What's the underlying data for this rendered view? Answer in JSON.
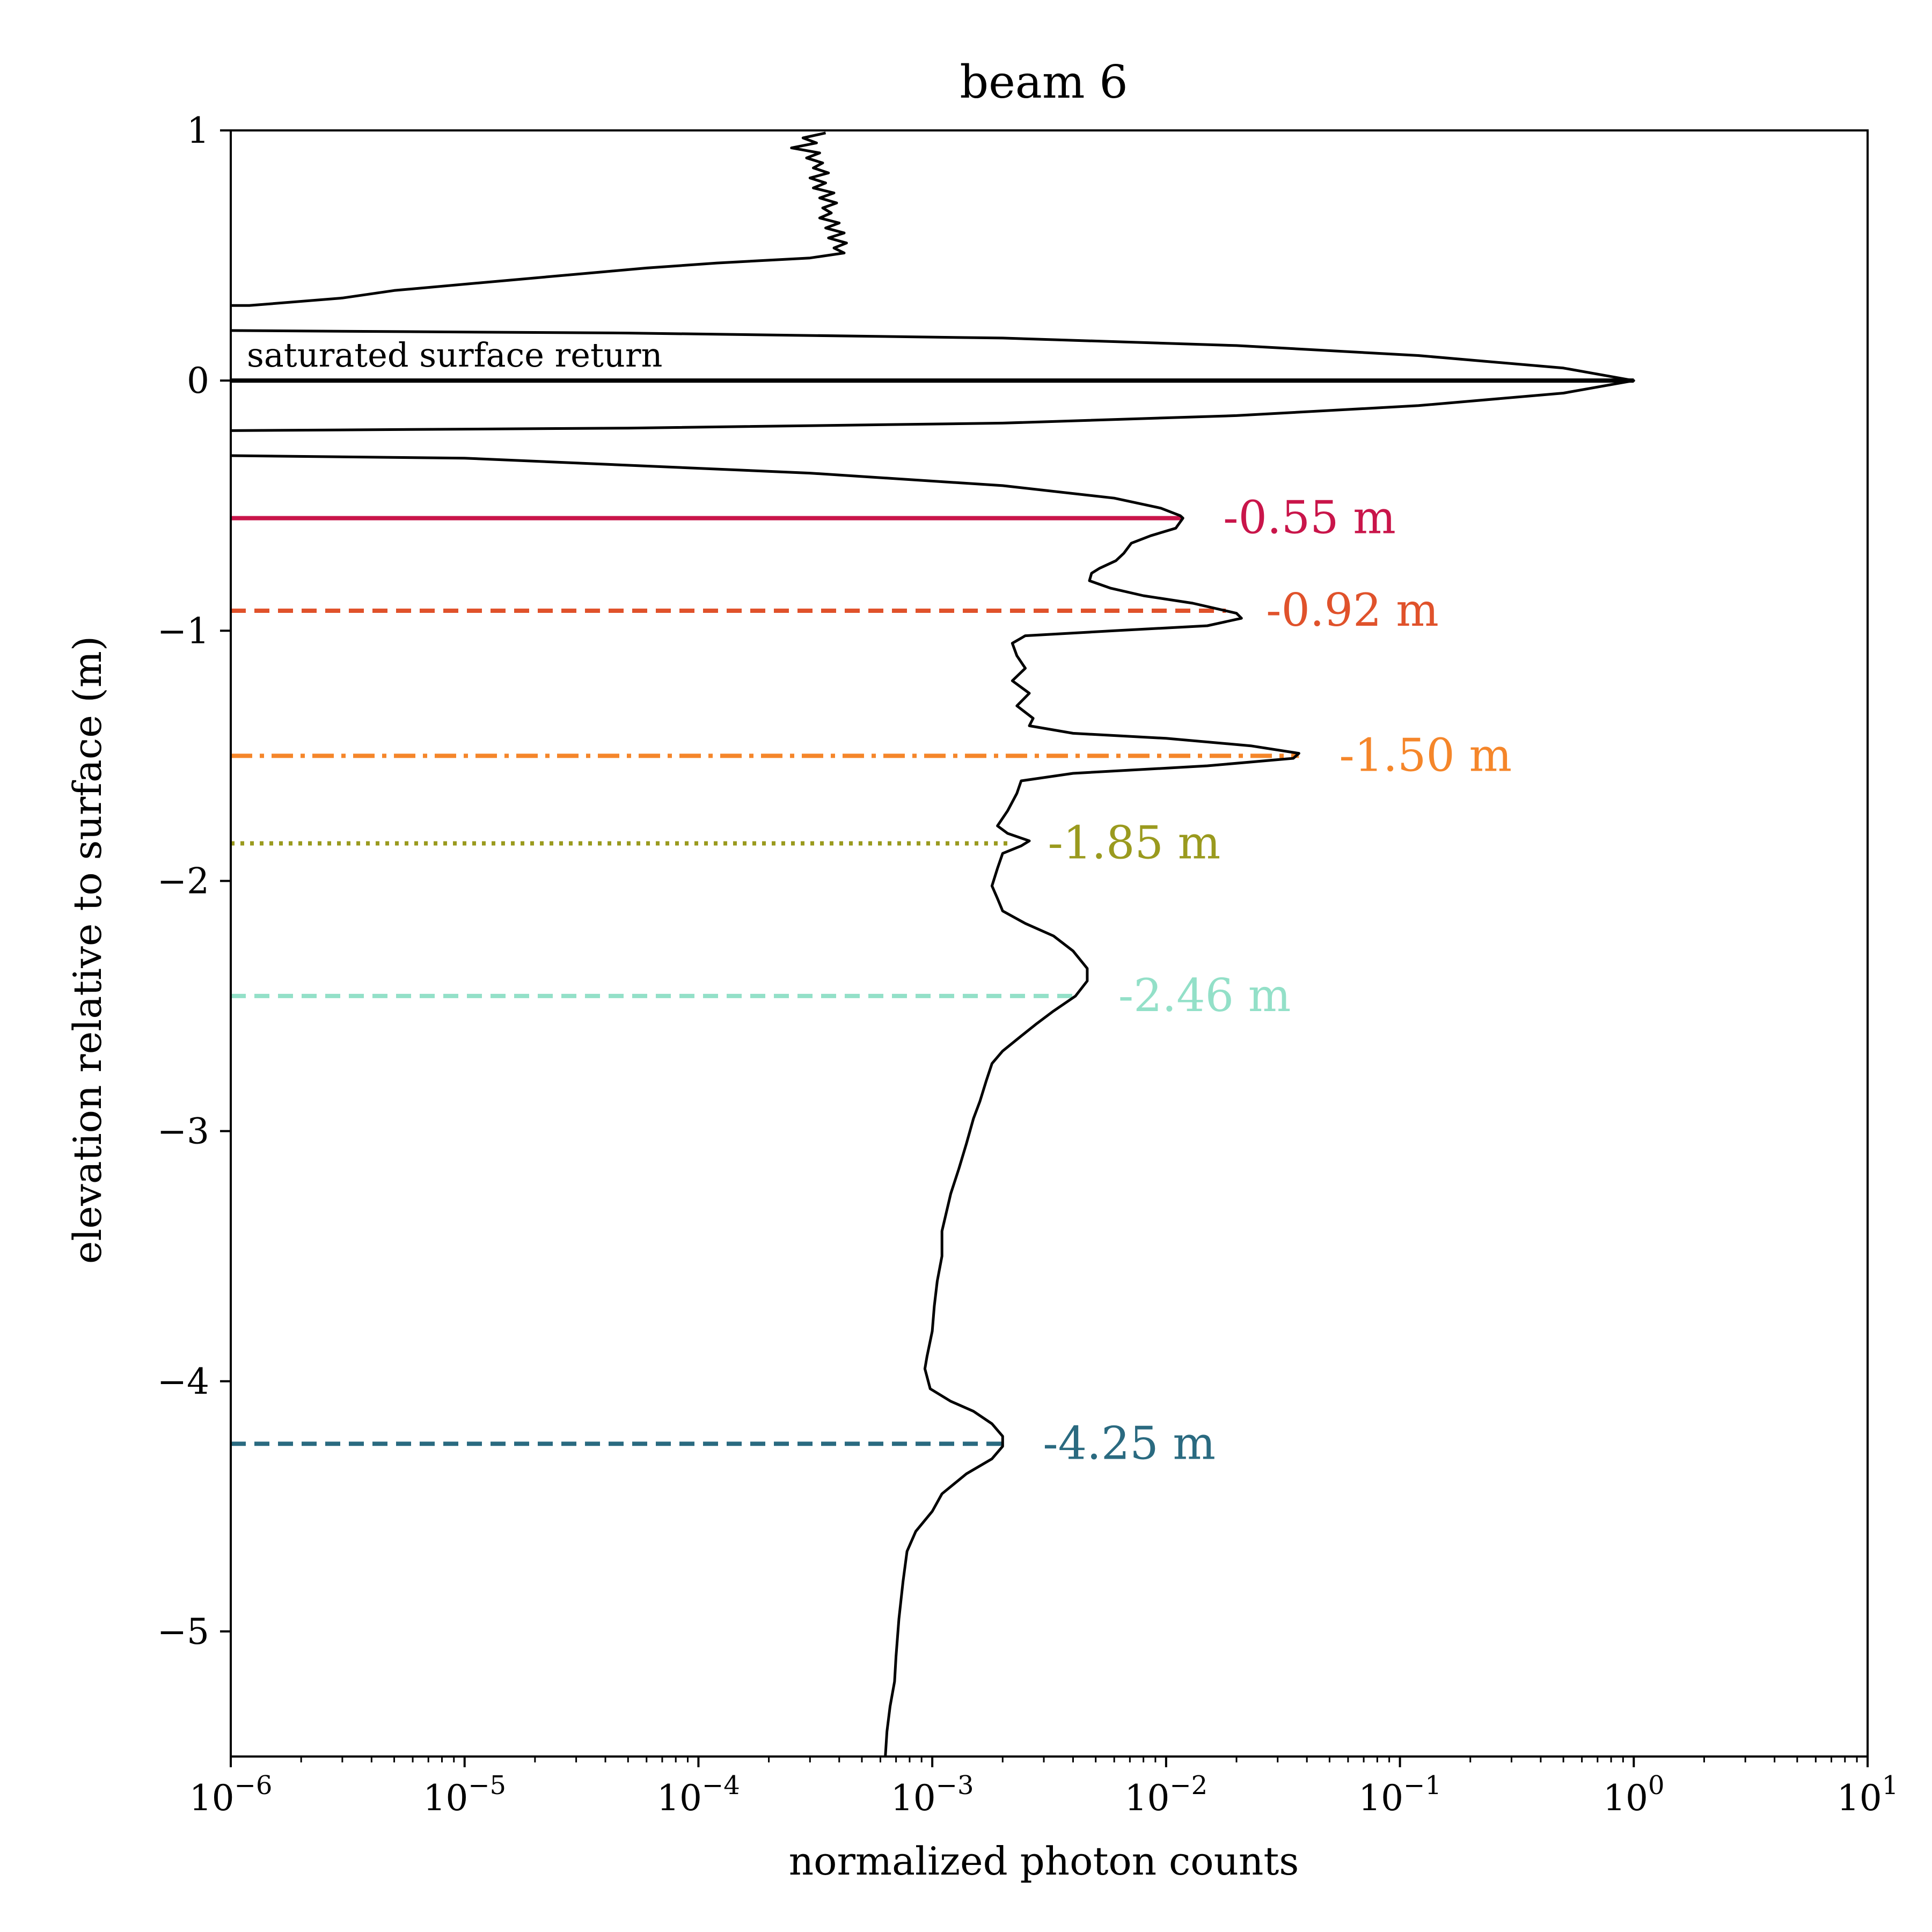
{
  "chart_data": {
    "type": "line",
    "title": "beam 6",
    "xlabel": "normalized photon counts",
    "ylabel": "elevation relative to surface (m)",
    "x_scale": "log",
    "xlim": [
      1e-06,
      10
    ],
    "ylim": [
      -5.5,
      1
    ],
    "grid": false,
    "x_tick_labels": [
      {
        "base": "10",
        "exp": "−6",
        "value": 1e-06
      },
      {
        "base": "10",
        "exp": "−5",
        "value": 1e-05
      },
      {
        "base": "10",
        "exp": "−4",
        "value": 0.0001
      },
      {
        "base": "10",
        "exp": "−3",
        "value": 0.001
      },
      {
        "base": "10",
        "exp": "−2",
        "value": 0.01
      },
      {
        "base": "10",
        "exp": "−1",
        "value": 0.1
      },
      {
        "base": "10",
        "exp": "0",
        "value": 1
      },
      {
        "base": "10",
        "exp": "1",
        "value": 10
      }
    ],
    "y_tick_labels": [
      {
        "label": "1",
        "value": 1
      },
      {
        "label": "0",
        "value": 0
      },
      {
        "label": "−1",
        "value": -1
      },
      {
        "label": "−2",
        "value": -2
      },
      {
        "label": "−3",
        "value": -3
      },
      {
        "label": "−4",
        "value": -4
      },
      {
        "label": "−5",
        "value": -5
      }
    ],
    "surface_annotation": "saturated surface return",
    "series": [
      {
        "color": "#000000",
        "segments": [
          {
            "points": [
              [
                0.00035,
                0.99
              ],
              [
                0.00028,
                0.97
              ],
              [
                0.00032,
                0.95
              ],
              [
                0.00025,
                0.93
              ],
              [
                0.00033,
                0.91
              ],
              [
                0.00029,
                0.89
              ],
              [
                0.00034,
                0.87
              ],
              [
                0.00031,
                0.85
              ],
              [
                0.00036,
                0.83
              ],
              [
                0.0003,
                0.81
              ],
              [
                0.00035,
                0.79
              ],
              [
                0.00031,
                0.77
              ],
              [
                0.00038,
                0.75
              ],
              [
                0.00033,
                0.73
              ],
              [
                0.00039,
                0.71
              ],
              [
                0.00034,
                0.69
              ],
              [
                0.00037,
                0.67
              ],
              [
                0.00033,
                0.65
              ],
              [
                0.0004,
                0.63
              ],
              [
                0.00035,
                0.61
              ],
              [
                0.00042,
                0.59
              ],
              [
                0.00036,
                0.57
              ],
              [
                0.00043,
                0.55
              ],
              [
                0.00038,
                0.53
              ],
              [
                0.00042,
                0.51
              ],
              [
                0.0003,
                0.49
              ],
              [
                0.00012,
                0.47
              ],
              [
                6e-05,
                0.45
              ],
              [
                1.5e-05,
                0.4
              ],
              [
                5e-06,
                0.36
              ],
              [
                3e-06,
                0.33
              ],
              [
                1.2e-06,
                0.3
              ],
              [
                1e-06,
                0.3
              ]
            ]
          },
          {
            "points": [
              [
                1e-06,
                0.2
              ],
              [
                5e-05,
                0.19
              ],
              [
                0.002,
                0.17
              ],
              [
                0.02,
                0.14
              ],
              [
                0.12,
                0.1
              ],
              [
                0.5,
                0.05
              ],
              [
                1.0,
                0.0
              ],
              [
                0.5,
                -0.05
              ],
              [
                0.12,
                -0.1
              ],
              [
                0.02,
                -0.14
              ],
              [
                0.002,
                -0.17
              ],
              [
                5e-05,
                -0.19
              ],
              [
                1e-06,
                -0.2
              ]
            ]
          },
          {
            "points": [
              [
                1e-06,
                -0.3
              ],
              [
                1e-05,
                -0.31
              ],
              [
                0.0003,
                -0.37
              ],
              [
                0.002,
                -0.42
              ],
              [
                0.006,
                -0.47
              ],
              [
                0.0095,
                -0.51
              ],
              [
                0.0115,
                -0.54
              ],
              [
                0.0118,
                -0.55
              ],
              [
                0.011,
                -0.59
              ],
              [
                0.0086,
                -0.62
              ],
              [
                0.0071,
                -0.65
              ],
              [
                0.0066,
                -0.69
              ],
              [
                0.0061,
                -0.72
              ],
              [
                0.0052,
                -0.75
              ],
              [
                0.0048,
                -0.77
              ],
              [
                0.0047,
                -0.8
              ],
              [
                0.0058,
                -0.83
              ],
              [
                0.008,
                -0.86
              ],
              [
                0.013,
                -0.89
              ],
              [
                0.02,
                -0.93
              ],
              [
                0.021,
                -0.95
              ],
              [
                0.015,
                -0.98
              ],
              [
                0.006,
                -1.0
              ],
              [
                0.0025,
                -1.02
              ],
              [
                0.0022,
                -1.05
              ],
              [
                0.0023,
                -1.1
              ],
              [
                0.0025,
                -1.15
              ],
              [
                0.0022,
                -1.2
              ],
              [
                0.0026,
                -1.25
              ],
              [
                0.0023,
                -1.3
              ],
              [
                0.0027,
                -1.35
              ],
              [
                0.0026,
                -1.38
              ],
              [
                0.004,
                -1.41
              ],
              [
                0.01,
                -1.43
              ],
              [
                0.023,
                -1.46
              ],
              [
                0.037,
                -1.49
              ],
              [
                0.035,
                -1.51
              ],
              [
                0.015,
                -1.54
              ],
              [
                0.004,
                -1.57
              ],
              [
                0.0024,
                -1.6
              ],
              [
                0.0023,
                -1.65
              ],
              [
                0.0021,
                -1.72
              ],
              [
                0.0019,
                -1.78
              ],
              [
                0.0021,
                -1.81
              ],
              [
                0.0026,
                -1.84
              ],
              [
                0.0024,
                -1.86
              ],
              [
                0.002,
                -1.89
              ],
              [
                0.0019,
                -1.95
              ],
              [
                0.0018,
                -2.02
              ],
              [
                0.0019,
                -2.07
              ],
              [
                0.002,
                -2.12
              ],
              [
                0.0025,
                -2.17
              ],
              [
                0.0033,
                -2.22
              ],
              [
                0.004,
                -2.28
              ],
              [
                0.0046,
                -2.35
              ],
              [
                0.0046,
                -2.4
              ],
              [
                0.0041,
                -2.46
              ],
              [
                0.0033,
                -2.52
              ],
              [
                0.0028,
                -2.57
              ],
              [
                0.0024,
                -2.62
              ],
              [
                0.002,
                -2.68
              ],
              [
                0.0018,
                -2.73
              ],
              [
                0.0017,
                -2.8
              ],
              [
                0.0016,
                -2.88
              ],
              [
                0.0015,
                -2.95
              ],
              [
                0.0014,
                -3.05
              ],
              [
                0.0013,
                -3.15
              ],
              [
                0.0012,
                -3.25
              ],
              [
                0.0011,
                -3.4
              ],
              [
                0.0011,
                -3.5
              ],
              [
                0.00105,
                -3.6
              ],
              [
                0.00102,
                -3.7
              ],
              [
                0.001,
                -3.8
              ],
              [
                0.00095,
                -3.9
              ],
              [
                0.00093,
                -3.95
              ],
              [
                0.00098,
                -4.03
              ],
              [
                0.0012,
                -4.08
              ],
              [
                0.0015,
                -4.12
              ],
              [
                0.0018,
                -4.17
              ],
              [
                0.002,
                -4.22
              ],
              [
                0.002,
                -4.26
              ],
              [
                0.0018,
                -4.31
              ],
              [
                0.0014,
                -4.37
              ],
              [
                0.0011,
                -4.45
              ],
              [
                0.001,
                -4.52
              ],
              [
                0.00085,
                -4.6
              ],
              [
                0.00078,
                -4.68
              ],
              [
                0.00075,
                -4.8
              ],
              [
                0.00072,
                -4.95
              ],
              [
                0.0007,
                -5.1
              ],
              [
                0.00069,
                -5.2
              ],
              [
                0.00066,
                -5.3
              ],
              [
                0.00064,
                -5.4
              ],
              [
                0.00063,
                -5.5
              ]
            ]
          }
        ]
      }
    ],
    "markers": [
      {
        "label": "-0.55 m",
        "depth": -0.55,
        "x_end": 0.0118,
        "color": "#c9154a",
        "style": "solid"
      },
      {
        "label": "-0.92 m",
        "depth": -0.92,
        "x_end": 0.018,
        "color": "#e0522b",
        "style": "dashed"
      },
      {
        "label": "-1.50 m",
        "depth": -1.5,
        "x_end": 0.037,
        "color": "#f5862a",
        "style": "dashdot"
      },
      {
        "label": "-1.85 m",
        "depth": -1.85,
        "x_end": 0.0021,
        "color": "#9a9a1e",
        "style": "dotted"
      },
      {
        "label": "-2.46 m",
        "depth": -2.46,
        "x_end": 0.0042,
        "color": "#93e0c8",
        "style": "dashed"
      },
      {
        "label": "-4.25 m",
        "depth": -4.25,
        "x_end": 0.002,
        "color": "#2a6a80",
        "style": "dashed"
      }
    ]
  }
}
